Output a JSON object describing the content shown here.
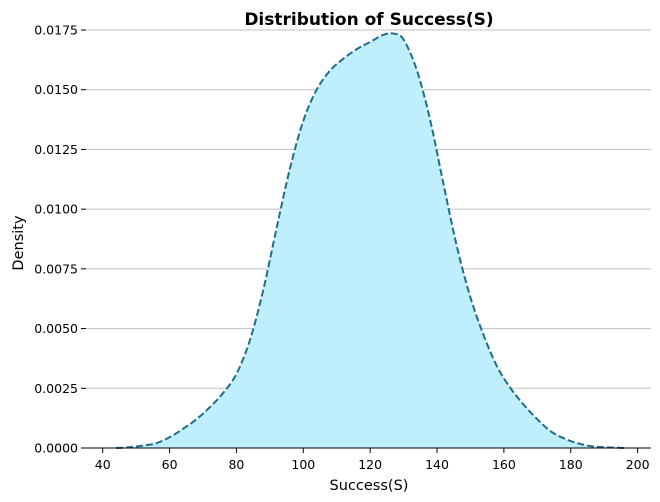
{
  "chart_data": {
    "type": "area",
    "title": "Distribution of Success(S)",
    "xlabel": "Success(S)",
    "ylabel": "Density",
    "xlim": [
      35,
      204
    ],
    "ylim": [
      0,
      0.0175
    ],
    "xticks": [
      40,
      60,
      80,
      100,
      120,
      140,
      160,
      180,
      200
    ],
    "yticks": [
      "0.0000",
      "0.0025",
      "0.0050",
      "0.0075",
      "0.0100",
      "0.0125",
      "0.0150",
      "0.0175"
    ],
    "grid": "horizontal",
    "series": [
      {
        "fill_color": "#bfeefc",
        "line_color": "#1f6e8c",
        "line_style": "dashed",
        "x": [
          44,
          48,
          52,
          56,
          60,
          64,
          68,
          72,
          76,
          80,
          84,
          88,
          92,
          96,
          100,
          104,
          108,
          112,
          116,
          120,
          124,
          127,
          130,
          134,
          138,
          142,
          146,
          150,
          154,
          158,
          162,
          166,
          170,
          174,
          178,
          182,
          186,
          190,
          196
        ],
        "y": [
          0.0,
          3e-05,
          0.0001,
          0.0002,
          0.00045,
          0.0008,
          0.0012,
          0.0017,
          0.0023,
          0.0031,
          0.0045,
          0.0066,
          0.0092,
          0.0117,
          0.0137,
          0.015,
          0.0158,
          0.0163,
          0.0167,
          0.017,
          0.0173,
          0.01735,
          0.0171,
          0.0158,
          0.0137,
          0.011,
          0.0084,
          0.0063,
          0.0047,
          0.0034,
          0.0025,
          0.0018,
          0.0012,
          0.0007,
          0.0004,
          0.0002,
          8e-05,
          3e-05,
          0.0
        ]
      }
    ]
  }
}
